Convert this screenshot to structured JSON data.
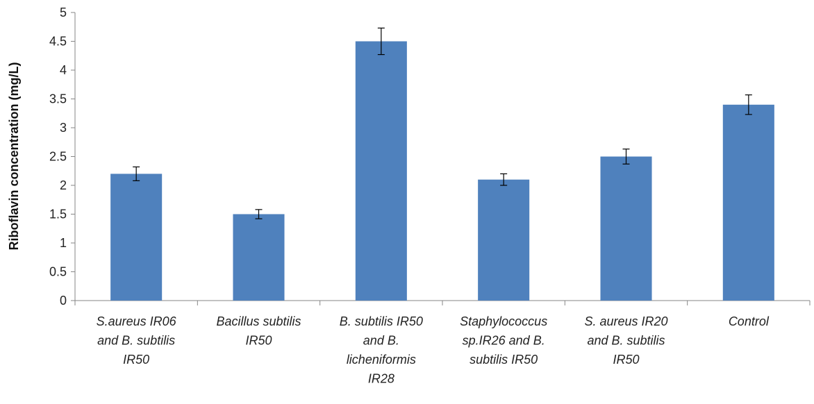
{
  "chart_data": {
    "type": "bar",
    "title": "",
    "xlabel": "",
    "ylabel": "Riboflavin concentration (mg/L)",
    "ylim": [
      0,
      5
    ],
    "yticks": [
      "0",
      "0.5",
      "1",
      "1.5",
      "2",
      "2.5",
      "3",
      "3.5",
      "4",
      "4.5",
      "5"
    ],
    "categories": [
      [
        "S.aureus IR06",
        "and B. subtilis",
        "IR50"
      ],
      [
        "Bacillus subtilis",
        "IR50"
      ],
      [
        "B. subtilis IR50",
        "and B.",
        "licheniformis",
        "IR28"
      ],
      [
        "Staphylococcus",
        "sp.IR26 and B.",
        "subtilis IR50"
      ],
      [
        "S. aureus IR20",
        "and B. subtilis",
        "IR50"
      ],
      [
        "Control"
      ]
    ],
    "values": [
      2.2,
      1.5,
      4.5,
      2.1,
      2.5,
      3.4
    ],
    "errors": [
      0.12,
      0.08,
      0.23,
      0.1,
      0.13,
      0.17
    ],
    "bar_color": "#4f81bd",
    "grid": false,
    "legend": "none"
  }
}
